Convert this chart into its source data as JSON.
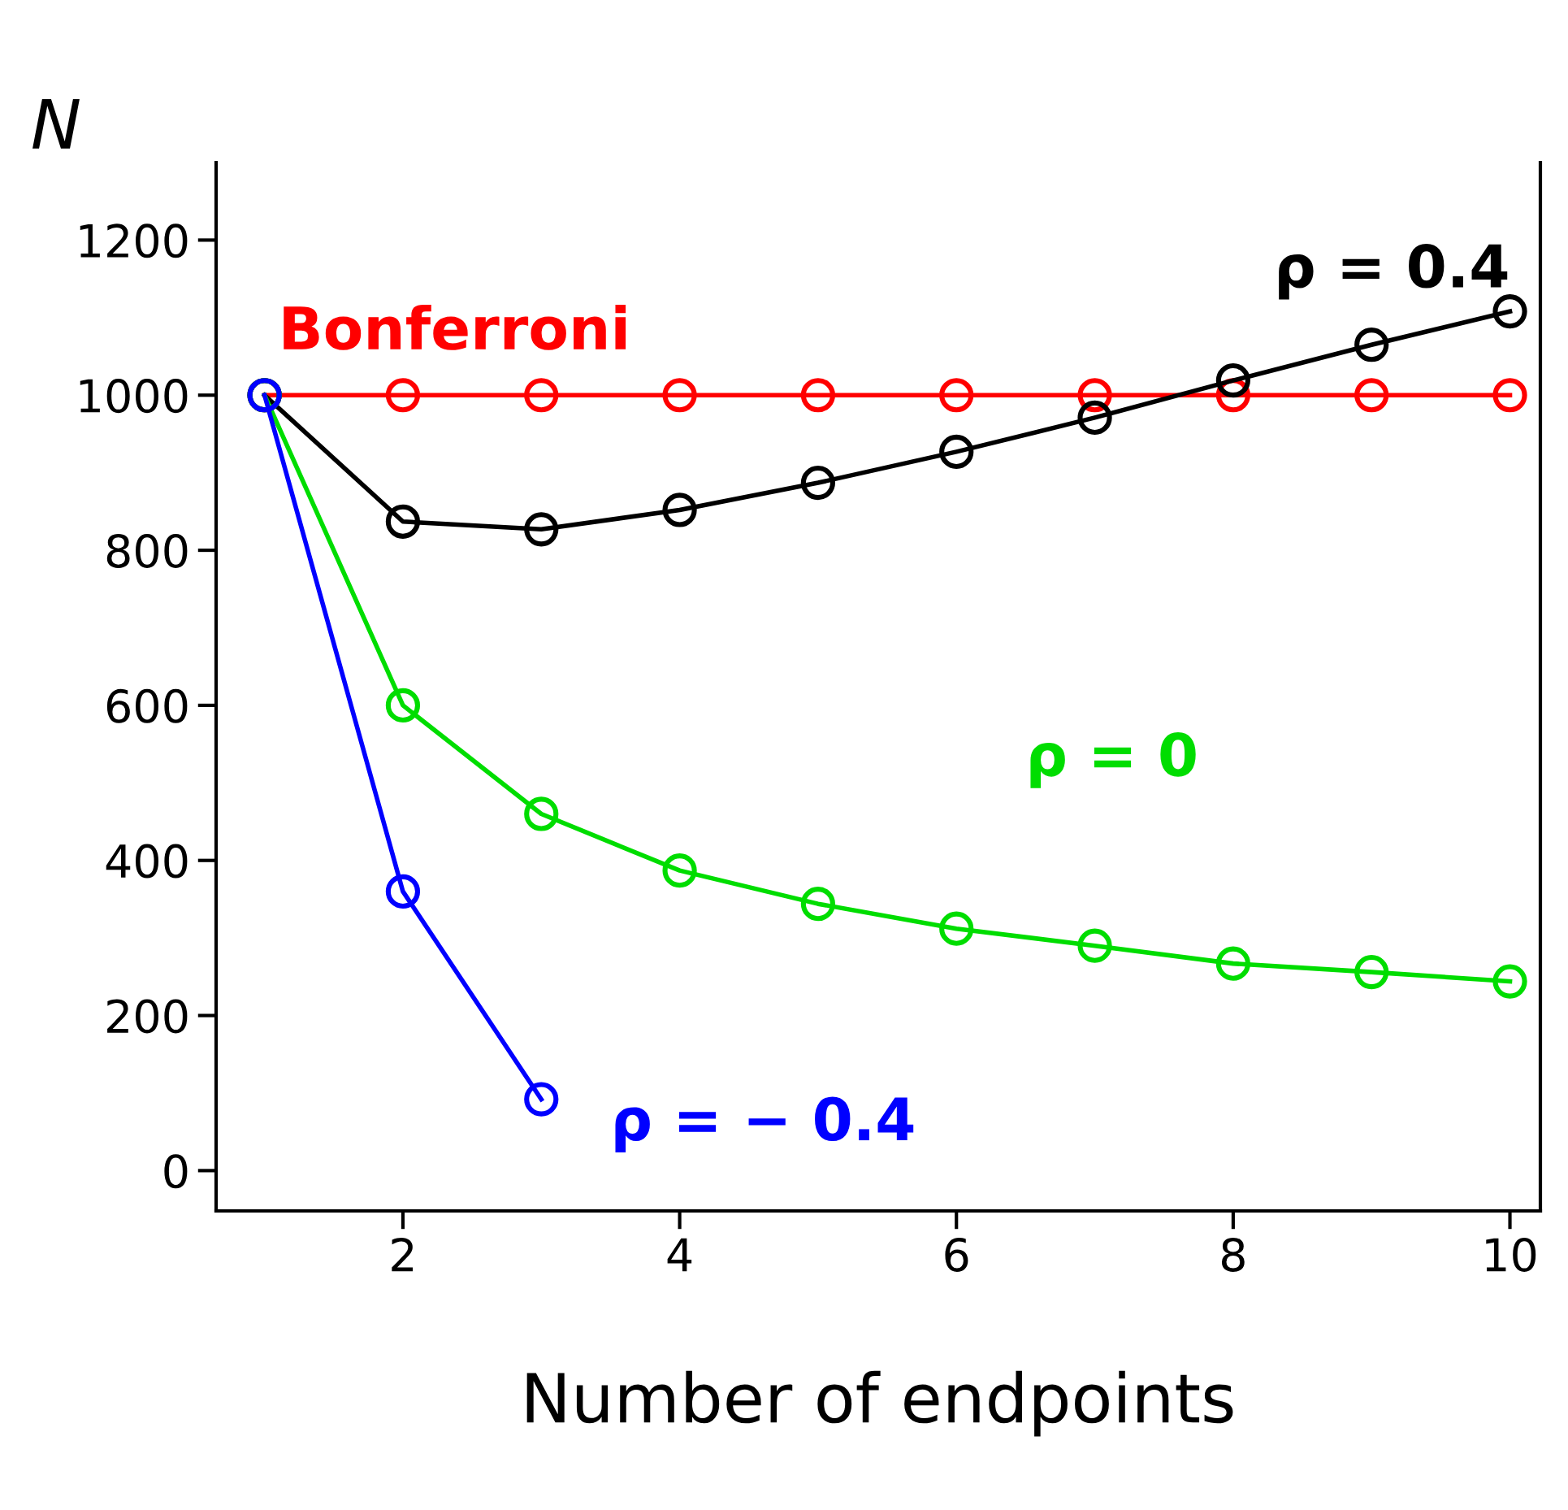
{
  "chart_data": {
    "type": "line",
    "xlabel": "Number of endpoints",
    "ylabel": "N",
    "x": [
      1,
      2,
      3,
      4,
      5,
      6,
      7,
      8,
      9,
      10
    ],
    "series": [
      {
        "name": "Bonferroni",
        "color": "#ff0000",
        "values": [
          1000,
          1000,
          1000,
          1000,
          1000,
          1000,
          1000,
          1000,
          1000,
          1000
        ]
      },
      {
        "name": "ρ = 0.4",
        "color": "#000000",
        "values": [
          1000,
          837,
          827,
          852,
          887,
          927,
          971,
          1019,
          1065,
          1108
        ]
      },
      {
        "name": "ρ = 0",
        "color": "#00dd00",
        "values": [
          1000,
          600,
          460,
          387,
          344,
          312,
          290,
          267,
          256,
          244
        ]
      },
      {
        "name": "ρ = − 0.4",
        "color": "#0000ff",
        "values": [
          1000,
          360,
          92,
          null,
          null,
          null,
          null,
          null,
          null,
          null
        ]
      }
    ],
    "xlim": [
      0.65,
      10.22
    ],
    "ylim": [
      -52,
      1300
    ],
    "xticks": [
      2,
      4,
      6,
      8,
      10
    ],
    "yticks": [
      0,
      200,
      400,
      600,
      800,
      1000,
      1200
    ],
    "marker": "circle",
    "grid": false,
    "legend": false
  }
}
